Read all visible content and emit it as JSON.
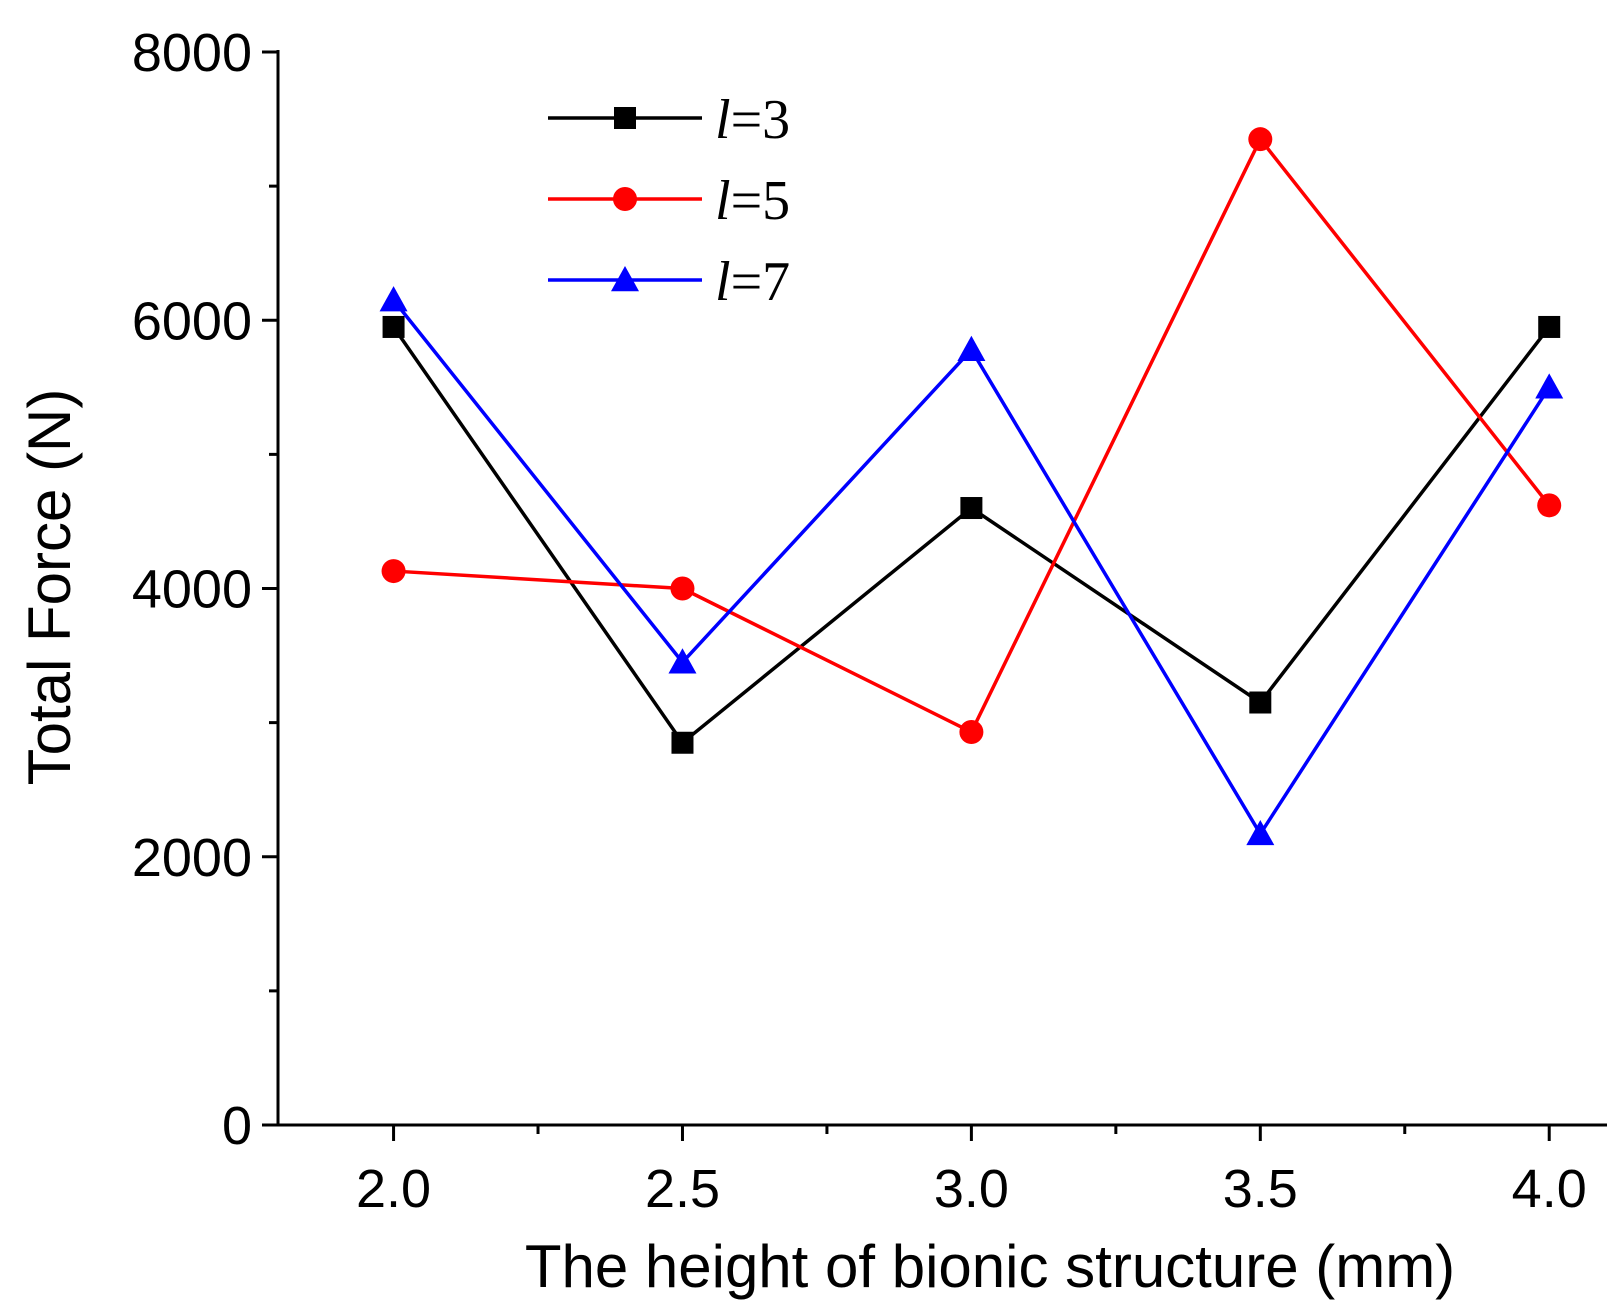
{
  "chart_data": {
    "type": "line",
    "title": "",
    "xlabel": "The height of bionic structure (mm)",
    "ylabel": "Total Force (N)",
    "x": [
      2.0,
      2.5,
      3.0,
      3.5,
      4.0
    ],
    "x_tick_labels": [
      "2.0",
      "2.5",
      "3.0",
      "3.5",
      "4.0"
    ],
    "xlim": [
      1.8,
      4.1
    ],
    "ylim": [
      0,
      8000
    ],
    "y_ticks": [
      0,
      2000,
      4000,
      6000,
      8000
    ],
    "y_tick_labels": [
      "0",
      "2000",
      "4000",
      "6000",
      "8000"
    ],
    "grid": false,
    "legend_position": "top-left",
    "series": [
      {
        "name": "l=3",
        "legend_var": "l",
        "legend_rest": "=3",
        "color": "#000000",
        "marker": "square",
        "values": [
          5950,
          2850,
          4600,
          3150,
          5950
        ]
      },
      {
        "name": "l=5",
        "legend_var": "l",
        "legend_rest": "=5",
        "color": "#ff0000",
        "marker": "circle",
        "values": [
          4130,
          4000,
          2930,
          7350,
          4620
        ]
      },
      {
        "name": "l=7",
        "legend_var": "l",
        "legend_rest": "=7",
        "color": "#0000ff",
        "marker": "triangle",
        "values": [
          6150,
          3450,
          5780,
          2170,
          5500
        ]
      }
    ]
  }
}
